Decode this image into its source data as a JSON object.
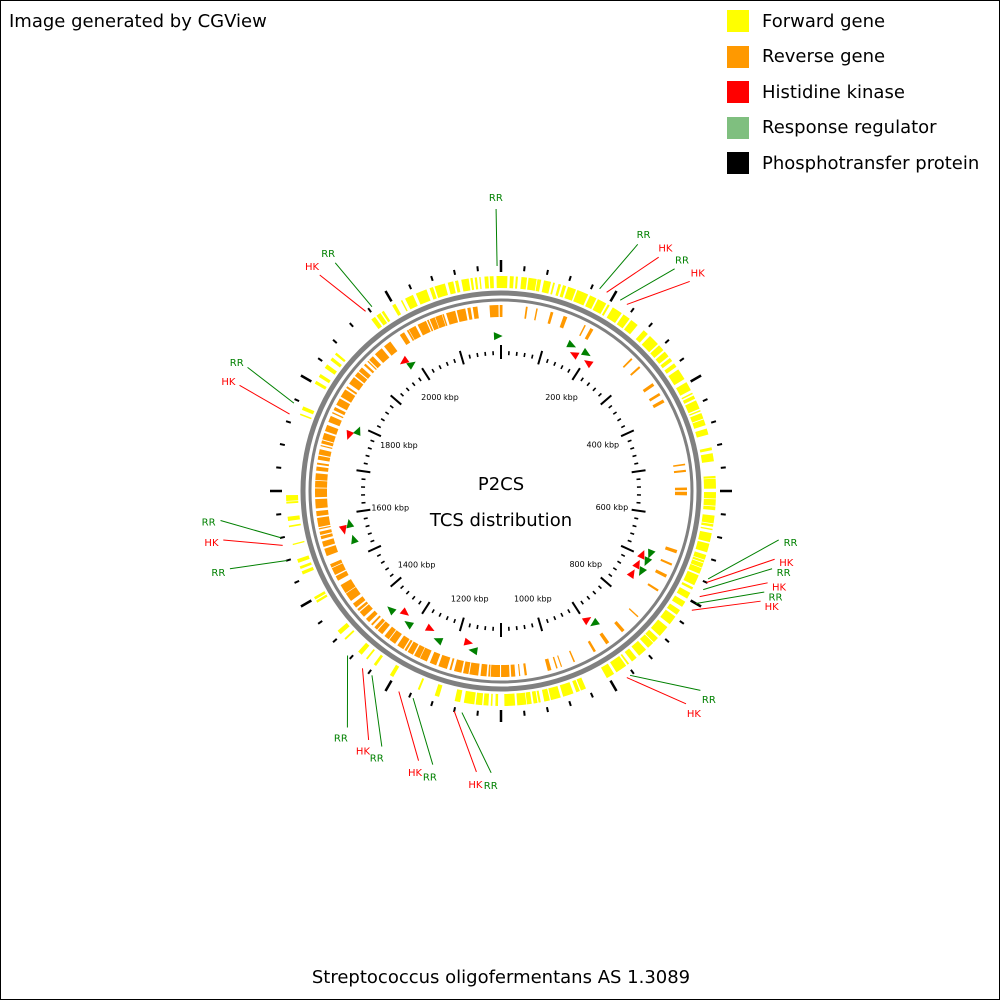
{
  "credit": "Image generated by CGView",
  "legend": [
    {
      "label": "Forward gene",
      "color": "#ffff00"
    },
    {
      "label": "Reverse gene",
      "color": "#ff9900"
    },
    {
      "label": "Histidine kinase",
      "color": "#ff0000"
    },
    {
      "label": "Response regulator",
      "color": "#7fbf7f"
    },
    {
      "label": "Phosphotransfer protein",
      "color": "#000000"
    }
  ],
  "map_title": "P2CS",
  "map_subtitle": "TCS distribution",
  "organism": "Streptococcus oligofermentans AS 1.3089",
  "backbone_color": "#808080",
  "label_colors": {
    "RR": "#008000",
    "HK": "#ff0000"
  },
  "scale_labels": [
    "200 kbp",
    "400 kbp",
    "600 kbp",
    "800 kbp",
    "1000 kbp",
    "1200 kbp",
    "1400 kbp",
    "1600 kbp",
    "1800 kbp",
    "2000 kbp"
  ],
  "features": [
    {
      "type": "RR",
      "label": "RR"
    },
    {
      "type": "RR",
      "label": "RR"
    },
    {
      "type": "HK",
      "label": "HK"
    },
    {
      "type": "RR",
      "label": "RR"
    },
    {
      "type": "HK",
      "label": "HK"
    },
    {
      "type": "RR",
      "label": "RR"
    },
    {
      "type": "HK",
      "label": "HK"
    },
    {
      "type": "RR",
      "label": "RR"
    },
    {
      "type": "HK",
      "label": "HK"
    },
    {
      "type": "RR",
      "label": "RR"
    },
    {
      "type": "HK",
      "label": "HK"
    },
    {
      "type": "RR",
      "label": "RR"
    },
    {
      "type": "HK",
      "label": "HK"
    },
    {
      "type": "RR",
      "label": "RR"
    },
    {
      "type": "HK",
      "label": "HK"
    },
    {
      "type": "RR",
      "label": "RR"
    },
    {
      "type": "HK",
      "label": "HK"
    },
    {
      "type": "RR",
      "label": "RR"
    },
    {
      "type": "HK",
      "label": "HK"
    },
    {
      "type": "RR",
      "label": "RR"
    },
    {
      "type": "RR",
      "label": "RR"
    },
    {
      "type": "HK",
      "label": "HK"
    },
    {
      "type": "RR",
      "label": "RR"
    },
    {
      "type": "HK",
      "label": "HK"
    },
    {
      "type": "RR",
      "label": "RR"
    },
    {
      "type": "HK",
      "label": "HK"
    },
    {
      "type": "RR",
      "label": "RR"
    }
  ]
}
